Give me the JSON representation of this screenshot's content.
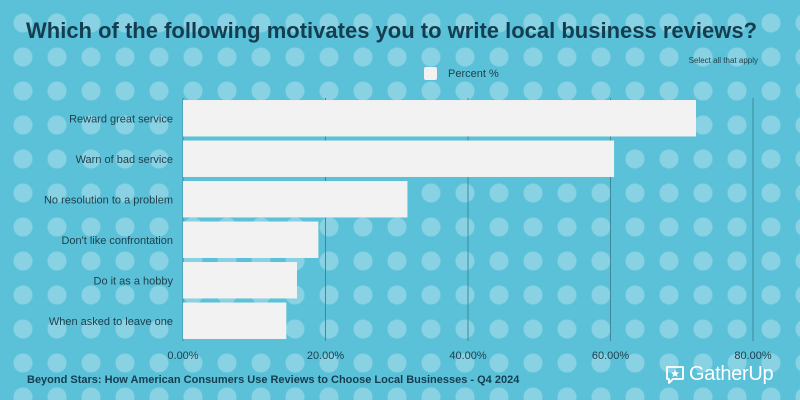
{
  "header": {
    "title": "Which of the following motivates you to write local business reviews?",
    "subtitle": "Select all that apply"
  },
  "footer": {
    "source": "Beyond Stars: How American Consumers Use Reviews to Choose Local Businesses - Q4 2024"
  },
  "brand": {
    "name": "GatherUp",
    "logo_icon": "chat-star-icon"
  },
  "colors": {
    "background": "#5bc1d8",
    "bar": "#f2f2f2",
    "gridline": "#3d8a9b",
    "title_text": "#143d4f"
  },
  "chart_data": {
    "type": "bar",
    "orientation": "horizontal",
    "categories": [
      "Reward great service",
      "Warn of bad service",
      "No resolution to a problem",
      "Don't like confrontation",
      "Do it as a hobby",
      "When asked to leave one"
    ],
    "series": [
      {
        "name": "Percent %",
        "values": [
          72,
          60.5,
          31.5,
          19,
          16,
          14.5
        ]
      }
    ],
    "xlim": [
      0,
      80
    ],
    "xticks": [
      0,
      20,
      40,
      60,
      80
    ],
    "xtick_labels": [
      "0.00%",
      "20.00%",
      "40.00%",
      "60.00%",
      "80.00%"
    ],
    "legend_position": "top-center",
    "grid": "vertical"
  }
}
